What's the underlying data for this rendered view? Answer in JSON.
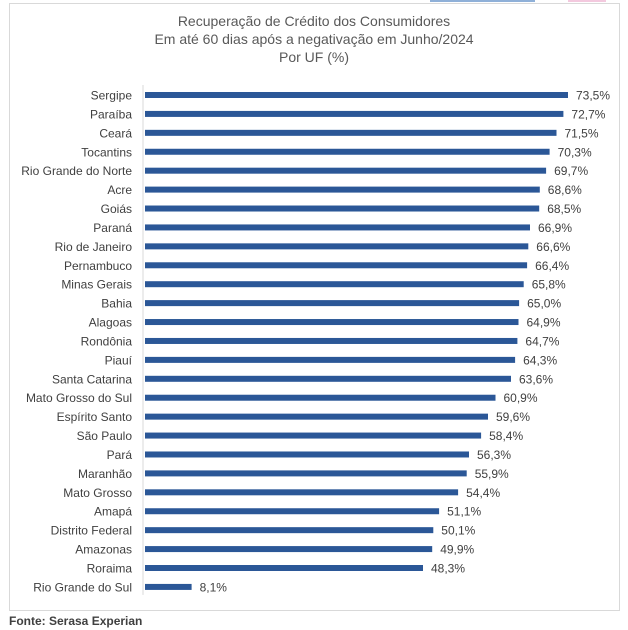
{
  "chart_data": {
    "type": "bar",
    "orientation": "horizontal",
    "title": [
      "Recuperação de Crédito dos Consumidores",
      "Em até 60 dias após a negativação em Junho/2024",
      "Por UF (%)"
    ],
    "xlabel": "",
    "ylabel": "",
    "grid": false,
    "legend": "none",
    "bar_color": "#2b5797",
    "categories": [
      "Sergipe",
      "Paraíba",
      "Ceará",
      "Tocantins",
      "Rio Grande do Norte",
      "Acre",
      "Goiás",
      "Paraná",
      "Rio de Janeiro",
      "Pernambuco",
      "Minas Gerais",
      "Bahia",
      "Alagoas",
      "Rondônia",
      "Piauí",
      "Santa Catarina",
      "Mato Grosso do Sul",
      "Espírito Santo",
      "São Paulo",
      "Pará",
      "Maranhão",
      "Mato Grosso",
      "Amapá",
      "Distrito Federal",
      "Amazonas",
      "Roraima",
      "Rio Grande do Sul"
    ],
    "values": [
      73.5,
      72.7,
      71.5,
      70.3,
      69.7,
      68.6,
      68.5,
      66.9,
      66.6,
      66.4,
      65.8,
      65.0,
      64.9,
      64.7,
      64.3,
      63.6,
      60.9,
      59.6,
      58.4,
      56.3,
      55.9,
      54.4,
      51.1,
      50.1,
      49.9,
      48.3,
      8.1
    ],
    "labels": [
      "73,5%",
      "72,7%",
      "71,5%",
      "70,3%",
      "69,7%",
      "68,6%",
      "68,5%",
      "66,9%",
      "66,6%",
      "66,4%",
      "65,8%",
      "65,0%",
      "64,9%",
      "64,7%",
      "64,3%",
      "63,6%",
      "60,9%",
      "59,6%",
      "58,4%",
      "56,3%",
      "55,9%",
      "54,4%",
      "51,1%",
      "50,1%",
      "49,9%",
      "48,3%",
      "8,1%"
    ],
    "xlim": [
      0,
      75
    ]
  },
  "source": "Fonte: Serasa Experian"
}
